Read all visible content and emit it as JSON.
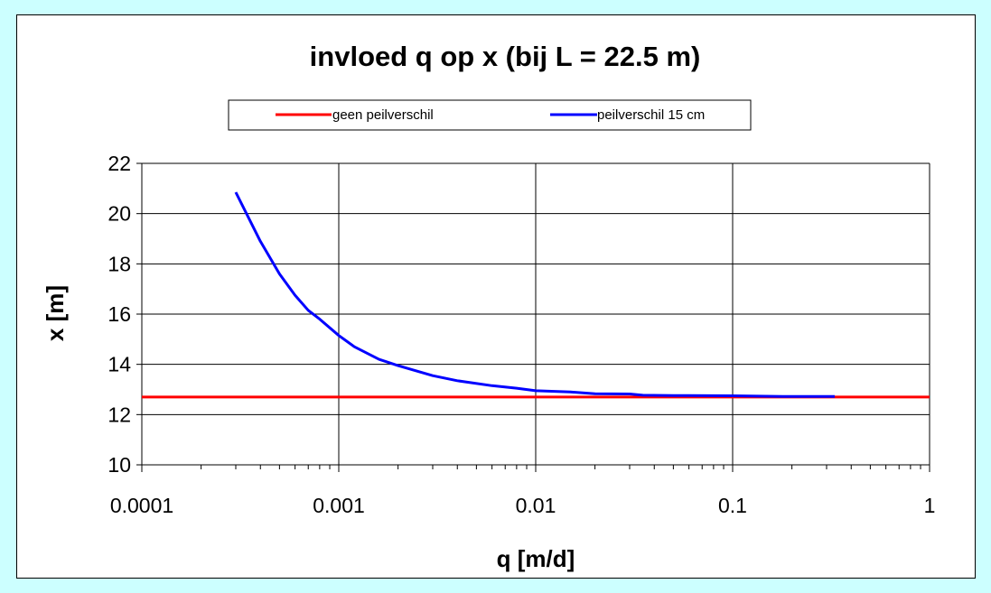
{
  "chart_data": {
    "type": "line",
    "title": "invloed q op x (bij L = 22.5 m)",
    "xlabel": "q [m/d]",
    "ylabel": "x [m]",
    "xscale": "log",
    "xlim": [
      0.0001,
      1
    ],
    "ylim": [
      10,
      22
    ],
    "xticks": [
      "0.0001",
      "0.001",
      "0.01",
      "0.1",
      "1"
    ],
    "yticks": [
      "10",
      "12",
      "14",
      "16",
      "18",
      "20",
      "22"
    ],
    "grid": true,
    "legend_position": "top",
    "series": [
      {
        "name": "geen peilverschil",
        "color": "#ff0000",
        "x": [
          0.0001,
          1
        ],
        "y": [
          12.7,
          12.7
        ]
      },
      {
        "name": "peilverschil 15 cm",
        "color": "#0000ff",
        "x": [
          0.0003,
          0.0004,
          0.0005,
          0.0006,
          0.0007,
          0.0008,
          0.001,
          0.0012,
          0.0016,
          0.002,
          0.003,
          0.004,
          0.006,
          0.008,
          0.01,
          0.015,
          0.02,
          0.03,
          0.035,
          0.05,
          0.1,
          0.18,
          0.33
        ],
        "y": [
          20.85,
          18.9,
          17.6,
          16.75,
          16.15,
          15.8,
          15.15,
          14.7,
          14.2,
          13.95,
          13.55,
          13.35,
          13.15,
          13.05,
          12.95,
          12.9,
          12.83,
          12.82,
          12.77,
          12.76,
          12.75,
          12.72,
          12.72
        ]
      }
    ]
  }
}
